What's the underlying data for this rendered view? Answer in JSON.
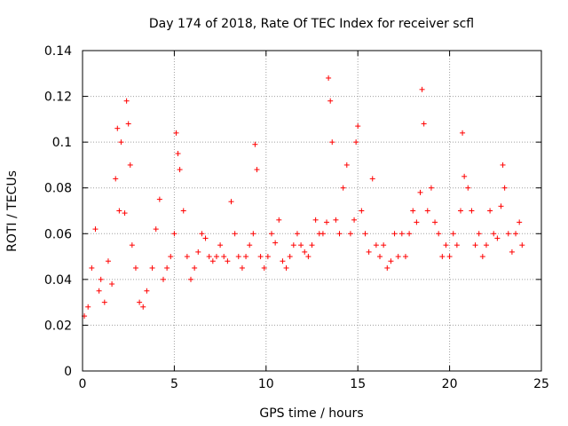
{
  "chart_data": {
    "type": "scatter",
    "title": "Day 174 of 2018, Rate Of TEC Index for receiver scfl",
    "xlabel": "GPS time / hours",
    "ylabel": "ROTI / TECUs",
    "xlim": [
      0,
      25
    ],
    "ylim": [
      0,
      0.14
    ],
    "xticks": [
      0,
      5,
      10,
      15,
      20,
      25
    ],
    "yticks": [
      0,
      0.02,
      0.04,
      0.06,
      0.08,
      0.1,
      0.12,
      0.14
    ],
    "xtick_labels": [
      "0",
      "5",
      "10",
      "15",
      "20",
      "25"
    ],
    "ytick_labels": [
      "0",
      "0.02",
      "0.04",
      "0.06",
      "0.08",
      "0.1",
      "0.12",
      "0.14"
    ],
    "grid": true,
    "marker": "+",
    "color": "#ff0000",
    "series": [
      {
        "name": "ROTI",
        "x": [
          0.1,
          0.3,
          0.5,
          0.7,
          0.9,
          1.0,
          1.2,
          1.4,
          1.6,
          1.8,
          1.9,
          2.0,
          2.1,
          2.3,
          2.4,
          2.5,
          2.6,
          2.7,
          2.9,
          3.1,
          3.3,
          3.5,
          3.8,
          4.0,
          4.2,
          4.4,
          4.6,
          4.8,
          5.0,
          5.1,
          5.2,
          5.3,
          5.5,
          5.7,
          5.9,
          6.1,
          6.3,
          6.5,
          6.7,
          6.9,
          7.1,
          7.3,
          7.5,
          7.7,
          7.9,
          8.1,
          8.3,
          8.5,
          8.7,
          8.9,
          9.1,
          9.3,
          9.4,
          9.5,
          9.7,
          9.9,
          10.1,
          10.3,
          10.5,
          10.7,
          10.9,
          11.1,
          11.3,
          11.5,
          11.7,
          11.9,
          12.1,
          12.3,
          12.5,
          12.7,
          12.9,
          13.1,
          13.3,
          13.4,
          13.5,
          13.6,
          13.8,
          14.0,
          14.2,
          14.4,
          14.6,
          14.8,
          14.9,
          15.0,
          15.2,
          15.4,
          15.6,
          15.8,
          16.0,
          16.2,
          16.4,
          16.6,
          16.8,
          17.0,
          17.2,
          17.4,
          17.6,
          17.8,
          18.0,
          18.2,
          18.4,
          18.5,
          18.6,
          18.8,
          19.0,
          19.2,
          19.4,
          19.6,
          19.8,
          20.0,
          20.2,
          20.4,
          20.6,
          20.7,
          20.8,
          21.0,
          21.2,
          21.4,
          21.6,
          21.8,
          22.0,
          22.2,
          22.4,
          22.6,
          22.8,
          22.9,
          23.0,
          23.2,
          23.4,
          23.6,
          23.8,
          23.95
        ],
        "y": [
          0.024,
          0.028,
          0.045,
          0.062,
          0.035,
          0.04,
          0.03,
          0.048,
          0.038,
          0.084,
          0.106,
          0.07,
          0.1,
          0.069,
          0.118,
          0.108,
          0.09,
          0.055,
          0.045,
          0.03,
          0.028,
          0.035,
          0.045,
          0.062,
          0.075,
          0.04,
          0.045,
          0.05,
          0.06,
          0.104,
          0.095,
          0.088,
          0.07,
          0.05,
          0.04,
          0.045,
          0.052,
          0.06,
          0.058,
          0.05,
          0.048,
          0.05,
          0.055,
          0.05,
          0.048,
          0.074,
          0.06,
          0.05,
          0.045,
          0.05,
          0.055,
          0.06,
          0.099,
          0.088,
          0.05,
          0.045,
          0.05,
          0.06,
          0.056,
          0.066,
          0.048,
          0.045,
          0.05,
          0.055,
          0.06,
          0.055,
          0.052,
          0.05,
          0.055,
          0.066,
          0.06,
          0.06,
          0.065,
          0.128,
          0.118,
          0.1,
          0.066,
          0.06,
          0.08,
          0.09,
          0.06,
          0.066,
          0.1,
          0.107,
          0.07,
          0.06,
          0.052,
          0.084,
          0.055,
          0.05,
          0.055,
          0.045,
          0.048,
          0.06,
          0.05,
          0.06,
          0.05,
          0.06,
          0.07,
          0.065,
          0.078,
          0.123,
          0.108,
          0.07,
          0.08,
          0.065,
          0.06,
          0.05,
          0.055,
          0.05,
          0.06,
          0.055,
          0.07,
          0.104,
          0.085,
          0.08,
          0.07,
          0.055,
          0.06,
          0.05,
          0.055,
          0.07,
          0.06,
          0.058,
          0.072,
          0.09,
          0.08,
          0.06,
          0.052,
          0.06,
          0.065,
          0.055
        ]
      }
    ]
  }
}
